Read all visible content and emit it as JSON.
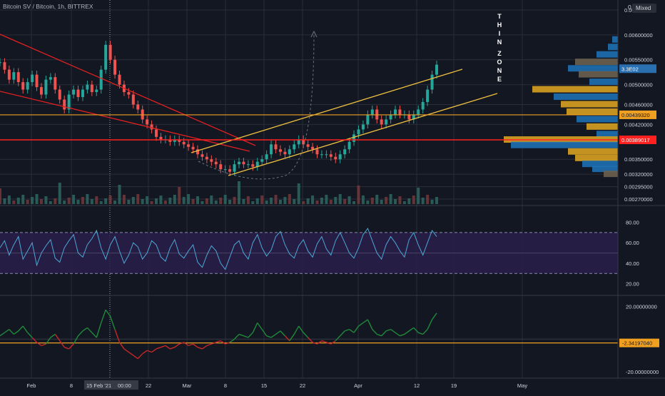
{
  "header": {
    "symbol_title": "Bitcoin SV / Bitcoin, 1h, BITTREX",
    "scale_mode": "Mixed",
    "top_scale_value": "0.0"
  },
  "annotation": {
    "word1": [
      "T",
      "H",
      "I",
      "N"
    ],
    "word2": [
      "Z",
      "O",
      "N",
      "E"
    ]
  },
  "colors": {
    "background": "#131722",
    "grid": "#2a2e39",
    "up_candle": "#26a69a",
    "down_candle": "#ef5350",
    "channel": "#f0c040",
    "trendline": "#e02020",
    "horizontal_orange": "#f0a020",
    "horizontal_red": "#ff2020",
    "rsi_line": "#4ca8d6",
    "rsi_band": "#2a1f4a",
    "vp_blue": "#1f6fb3",
    "vp_orange": "#d8a020",
    "vp_grey": "#6b6050"
  },
  "chart_data": [
    {
      "type": "line",
      "title": "Bitcoin SV / Bitcoin, 1h, BITTREX",
      "panel": "price",
      "x_ticks": [
        "Feb",
        "8",
        "15 Feb '21",
        "00:00",
        "22",
        "Mar",
        "8",
        "15",
        "22",
        "Apr",
        "12",
        "19",
        "May"
      ],
      "y_ticks": [
        "0.00650000",
        "0.00600000",
        "0.00550000",
        "0.00500000",
        "0.00460000",
        "0.00420000",
        "0.00350000",
        "0.00320000",
        "0.00295000",
        "0.00270000"
      ],
      "ylim": [
        0.0026,
        0.0067
      ],
      "series": [
        {
          "values": [
            0.00545,
            0.0053,
            0.0051,
            0.00525,
            0.00505,
            0.0049,
            0.00505,
            0.0052,
            0.00495,
            0.0048,
            0.0051,
            0.00515,
            0.0049,
            0.0047,
            0.0045,
            0.0048,
            0.0049,
            0.00475,
            0.0049,
            0.005,
            0.00485,
            0.0049,
            0.0053,
            0.0058,
            0.0055,
            0.0052,
            0.005,
            0.00485,
            0.0048,
            0.0046,
            0.0045,
            0.0043,
            0.0042,
            0.0041,
            0.00395,
            0.0039,
            0.0039,
            0.00385,
            0.0039,
            0.00385,
            0.0038,
            0.00375,
            0.0037,
            0.0036,
            0.00355,
            0.0035,
            0.00345,
            0.0034,
            0.0033,
            0.0033,
            0.00325,
            0.0034,
            0.00345,
            0.0034,
            0.0034,
            0.00335,
            0.00345,
            0.0035,
            0.0036,
            0.0038,
            0.0037,
            0.00365,
            0.0036,
            0.0037,
            0.0038,
            0.0039,
            0.0038,
            0.00375,
            0.0037,
            0.0036,
            0.0036,
            0.0036,
            0.00355,
            0.0035,
            0.0036,
            0.0037,
            0.00385,
            0.004,
            0.0041,
            0.0042,
            0.0044,
            0.0045,
            0.0043,
            0.0042,
            0.0043,
            0.0044,
            0.0045,
            0.0044,
            0.0044,
            0.0043,
            0.0044,
            0.0045,
            0.00465,
            0.0049,
            0.0052,
            0.0054
          ]
        }
      ],
      "levels": [
        {
          "label": "0.00439320",
          "value": 0.0043932,
          "color": "#f0a020"
        },
        {
          "label": "0.00389017",
          "value": 0.00389017,
          "color": "#ff2020"
        },
        {
          "label": "3.3E02",
          "value": 0.00532,
          "color": "#2a6fb0"
        }
      ]
    },
    {
      "type": "line",
      "panel": "rsi",
      "y_ticks": [
        "80.00",
        "60.00",
        "40.00",
        "20.00"
      ],
      "ylim": [
        10,
        95
      ],
      "band": [
        30,
        70
      ],
      "series": [
        {
          "values": [
            55,
            62,
            48,
            58,
            66,
            44,
            52,
            60,
            38,
            50,
            57,
            63,
            45,
            41,
            55,
            62,
            68,
            50,
            46,
            58,
            64,
            72,
            55,
            44,
            58,
            66,
            52,
            40,
            48,
            60,
            56,
            44,
            50,
            62,
            58,
            46,
            42,
            55,
            63,
            49,
            45,
            52,
            58,
            41,
            36,
            48,
            57,
            52,
            40,
            34,
            46,
            58,
            62,
            50,
            44,
            60,
            68,
            55,
            47,
            53,
            66,
            71,
            58,
            49,
            45,
            57,
            63,
            52,
            46,
            59,
            66,
            54,
            48,
            62,
            70,
            60,
            50,
            45,
            55,
            68,
            74,
            62,
            50,
            44,
            58,
            66,
            60,
            52,
            46,
            63,
            70,
            58,
            48,
            60,
            72,
            66
          ]
        }
      ]
    },
    {
      "type": "line",
      "panel": "oscillator",
      "y_ticks": [
        "20.00000000",
        "-20.00000000"
      ],
      "ylim": [
        -24,
        26
      ],
      "levels": [
        {
          "label": "-2.34197040",
          "value": -2.3419704,
          "color": "#f0a020"
        }
      ],
      "series": [
        {
          "values": [
            2,
            4,
            6,
            3,
            5,
            8,
            4,
            1,
            -2,
            -4,
            -3,
            1,
            3,
            -1,
            -5,
            -6,
            -3,
            2,
            5,
            7,
            4,
            1,
            10,
            18,
            14,
            6,
            -2,
            -6,
            -8,
            -10,
            -12,
            -9,
            -7,
            -8,
            -6,
            -5,
            -4,
            -6,
            -5,
            -3,
            -2,
            -4,
            -3,
            -5,
            -6,
            -4,
            -3,
            -2,
            -1,
            -3,
            -2,
            0,
            3,
            2,
            1,
            4,
            10,
            6,
            2,
            1,
            3,
            5,
            2,
            -1,
            3,
            8,
            4,
            1,
            -2,
            -3,
            -1,
            -2,
            -3,
            -1,
            2,
            5,
            6,
            4,
            8,
            10,
            12,
            6,
            3,
            2,
            5,
            6,
            4,
            2,
            3,
            5,
            7,
            4,
            3,
            6,
            12,
            16
          ]
        }
      ]
    }
  ]
}
